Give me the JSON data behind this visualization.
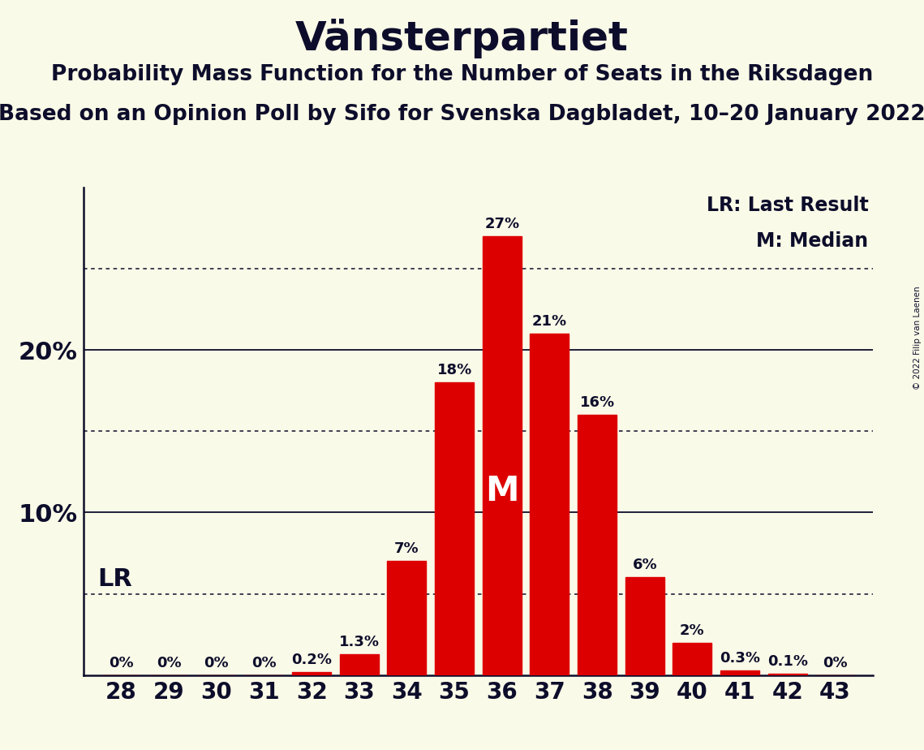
{
  "title": "Vänsterpartiet",
  "subtitle1": "Probability Mass Function for the Number of Seats in the Riksdagen",
  "subtitle2": "Based on an Opinion Poll by Sifo for Svenska Dagbladet, 10–20 January 2022",
  "copyright": "© 2022 Filip van Laenen",
  "seats": [
    28,
    29,
    30,
    31,
    32,
    33,
    34,
    35,
    36,
    37,
    38,
    39,
    40,
    41,
    42,
    43
  ],
  "probabilities": [
    0.0,
    0.0,
    0.0,
    0.0,
    0.2,
    1.3,
    7.0,
    18.0,
    27.0,
    21.0,
    16.0,
    6.0,
    2.0,
    0.3,
    0.1,
    0.0
  ],
  "labels": [
    "0%",
    "0%",
    "0%",
    "0%",
    "0.2%",
    "1.3%",
    "7%",
    "18%",
    "27%",
    "21%",
    "16%",
    "6%",
    "2%",
    "0.3%",
    "0.1%",
    "0%"
  ],
  "bar_color": "#dd0000",
  "background_color": "#fafae8",
  "text_color": "#0d0d2b",
  "median_seat": 36,
  "lr_level": 5.0,
  "dotted_lines": [
    5,
    15,
    25
  ],
  "solid_lines": [
    10,
    20
  ],
  "legend_lr": "LR: Last Result",
  "legend_m": "M: Median",
  "ylim_max": 30,
  "bar_width": 0.82
}
